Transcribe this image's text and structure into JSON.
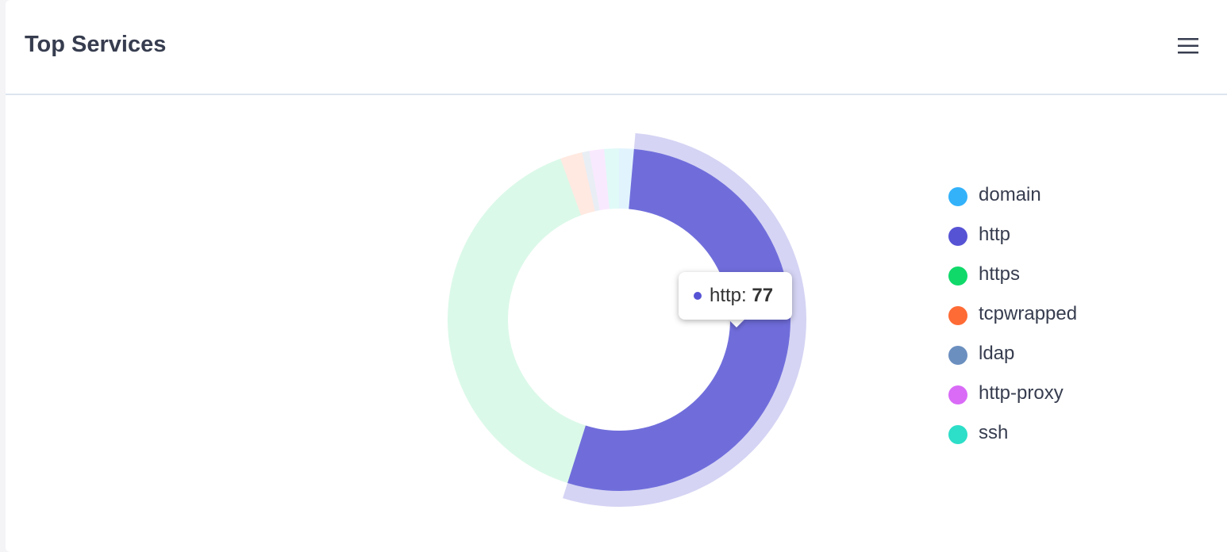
{
  "chart_data": {
    "type": "donut",
    "title": "Top Services",
    "categories": [
      "domain",
      "http",
      "https",
      "tcpwrapped",
      "ldap",
      "http-proxy",
      "ssh"
    ],
    "values": [
      2,
      77,
      57,
      3,
      1,
      2,
      2
    ],
    "colors": [
      "#33b2fa",
      "#5753d5",
      "#10d96a",
      "#ff6b35",
      "#6b8fbf",
      "#d96bf7",
      "#2ddec8"
    ],
    "legend": "right"
  }
}
